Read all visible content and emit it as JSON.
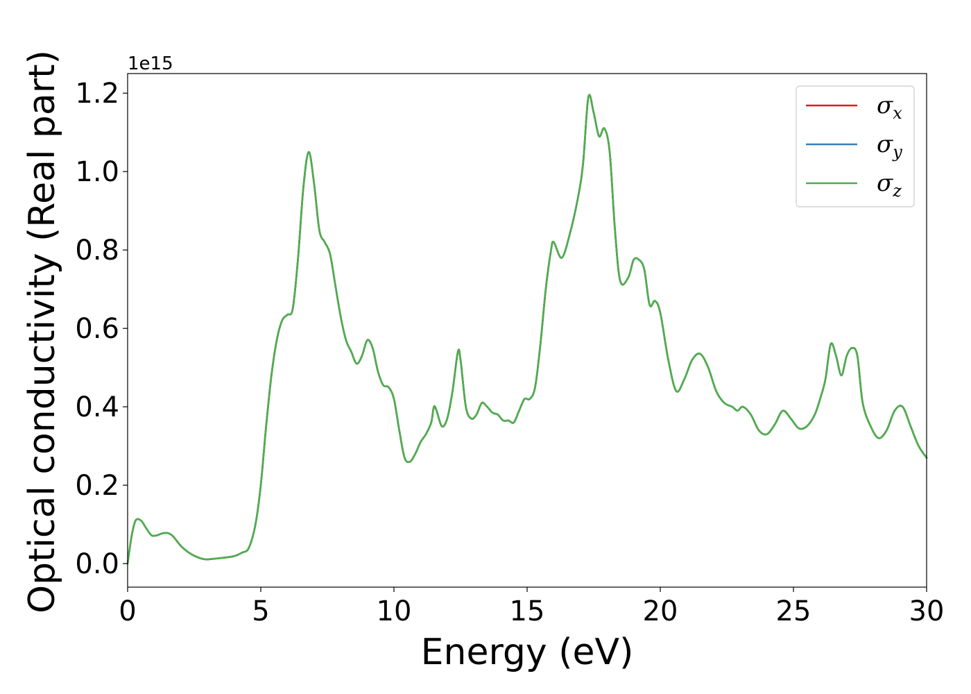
{
  "chart_data": {
    "type": "line",
    "xlabel": "Energy (eV)",
    "ylabel": "Optical conductivity (Real part)",
    "y_offset_label": "1e15",
    "xlim": [
      0,
      30
    ],
    "ylim": [
      -0.06,
      1.25
    ],
    "x_ticks": [
      0,
      5,
      10,
      15,
      20,
      25,
      30
    ],
    "y_ticks": [
      0.0,
      0.2,
      0.4,
      0.6,
      0.8,
      1.0,
      1.2
    ],
    "y_tick_labels": [
      "0.0",
      "0.2",
      "0.4",
      "0.6",
      "0.8",
      "1.0",
      "1.2"
    ],
    "grid": false,
    "legend_position": "top-right",
    "series": [
      {
        "name": "σx",
        "symbol": "σ",
        "subscript": "x",
        "color": "#e41a1c",
        "points": "shared"
      },
      {
        "name": "σy",
        "symbol": "σ",
        "subscript": "y",
        "color": "#377eb8",
        "points": "shared"
      },
      {
        "name": "σz",
        "symbol": "σ",
        "subscript": "z",
        "color": "#4daf4a",
        "points": "shared"
      }
    ],
    "shared_points": [
      [
        0.0,
        0.0
      ],
      [
        0.15,
        0.07
      ],
      [
        0.3,
        0.11
      ],
      [
        0.5,
        0.11
      ],
      [
        0.7,
        0.09
      ],
      [
        0.9,
        0.072
      ],
      [
        1.1,
        0.072
      ],
      [
        1.3,
        0.077
      ],
      [
        1.5,
        0.078
      ],
      [
        1.7,
        0.07
      ],
      [
        2.0,
        0.045
      ],
      [
        2.3,
        0.028
      ],
      [
        2.6,
        0.017
      ],
      [
        2.9,
        0.011
      ],
      [
        3.2,
        0.012
      ],
      [
        3.6,
        0.015
      ],
      [
        4.0,
        0.019
      ],
      [
        4.3,
        0.028
      ],
      [
        4.55,
        0.04
      ],
      [
        4.8,
        0.1
      ],
      [
        5.0,
        0.2
      ],
      [
        5.2,
        0.35
      ],
      [
        5.4,
        0.48
      ],
      [
        5.6,
        0.57
      ],
      [
        5.8,
        0.62
      ],
      [
        6.0,
        0.635
      ],
      [
        6.2,
        0.65
      ],
      [
        6.4,
        0.78
      ],
      [
        6.6,
        0.96
      ],
      [
        6.8,
        1.05
      ],
      [
        7.0,
        0.97
      ],
      [
        7.2,
        0.85
      ],
      [
        7.4,
        0.82
      ],
      [
        7.6,
        0.79
      ],
      [
        7.8,
        0.71
      ],
      [
        8.0,
        0.63
      ],
      [
        8.2,
        0.57
      ],
      [
        8.4,
        0.54
      ],
      [
        8.6,
        0.51
      ],
      [
        8.8,
        0.53
      ],
      [
        9.0,
        0.57
      ],
      [
        9.2,
        0.55
      ],
      [
        9.4,
        0.49
      ],
      [
        9.6,
        0.455
      ],
      [
        9.8,
        0.45
      ],
      [
        10.0,
        0.42
      ],
      [
        10.2,
        0.34
      ],
      [
        10.4,
        0.27
      ],
      [
        10.6,
        0.26
      ],
      [
        10.8,
        0.28
      ],
      [
        11.0,
        0.31
      ],
      [
        11.2,
        0.33
      ],
      [
        11.4,
        0.36
      ],
      [
        11.5,
        0.4
      ],
      [
        11.6,
        0.39
      ],
      [
        11.8,
        0.35
      ],
      [
        12.0,
        0.37
      ],
      [
        12.2,
        0.44
      ],
      [
        12.4,
        0.54
      ],
      [
        12.5,
        0.52
      ],
      [
        12.7,
        0.4
      ],
      [
        12.9,
        0.37
      ],
      [
        13.1,
        0.38
      ],
      [
        13.3,
        0.41
      ],
      [
        13.5,
        0.4
      ],
      [
        13.7,
        0.385
      ],
      [
        13.9,
        0.38
      ],
      [
        14.1,
        0.365
      ],
      [
        14.3,
        0.365
      ],
      [
        14.5,
        0.36
      ],
      [
        14.7,
        0.39
      ],
      [
        14.9,
        0.42
      ],
      [
        15.1,
        0.42
      ],
      [
        15.3,
        0.45
      ],
      [
        15.5,
        0.56
      ],
      [
        15.7,
        0.7
      ],
      [
        15.9,
        0.8
      ],
      [
        16.0,
        0.82
      ],
      [
        16.3,
        0.78
      ],
      [
        16.6,
        0.84
      ],
      [
        16.9,
        0.93
      ],
      [
        17.1,
        1.02
      ],
      [
        17.3,
        1.19
      ],
      [
        17.5,
        1.15
      ],
      [
        17.7,
        1.09
      ],
      [
        17.9,
        1.11
      ],
      [
        18.1,
        1.05
      ],
      [
        18.3,
        0.85
      ],
      [
        18.5,
        0.72
      ],
      [
        18.8,
        0.73
      ],
      [
        19.0,
        0.775
      ],
      [
        19.2,
        0.775
      ],
      [
        19.4,
        0.75
      ],
      [
        19.6,
        0.66
      ],
      [
        19.8,
        0.67
      ],
      [
        20.0,
        0.64
      ],
      [
        20.3,
        0.52
      ],
      [
        20.6,
        0.44
      ],
      [
        20.9,
        0.47
      ],
      [
        21.2,
        0.52
      ],
      [
        21.5,
        0.535
      ],
      [
        21.8,
        0.5
      ],
      [
        22.1,
        0.44
      ],
      [
        22.4,
        0.41
      ],
      [
        22.7,
        0.4
      ],
      [
        22.9,
        0.39
      ],
      [
        23.1,
        0.4
      ],
      [
        23.4,
        0.38
      ],
      [
        23.7,
        0.34
      ],
      [
        24.0,
        0.33
      ],
      [
        24.3,
        0.355
      ],
      [
        24.6,
        0.39
      ],
      [
        24.9,
        0.37
      ],
      [
        25.2,
        0.345
      ],
      [
        25.5,
        0.35
      ],
      [
        25.8,
        0.38
      ],
      [
        26.0,
        0.42
      ],
      [
        26.2,
        0.47
      ],
      [
        26.4,
        0.56
      ],
      [
        26.6,
        0.53
      ],
      [
        26.8,
        0.48
      ],
      [
        27.0,
        0.53
      ],
      [
        27.2,
        0.55
      ],
      [
        27.4,
        0.53
      ],
      [
        27.6,
        0.41
      ],
      [
        27.9,
        0.35
      ],
      [
        28.2,
        0.32
      ],
      [
        28.5,
        0.34
      ],
      [
        28.8,
        0.39
      ],
      [
        29.1,
        0.4
      ],
      [
        29.4,
        0.35
      ],
      [
        29.7,
        0.3
      ],
      [
        30.0,
        0.27
      ]
    ]
  }
}
